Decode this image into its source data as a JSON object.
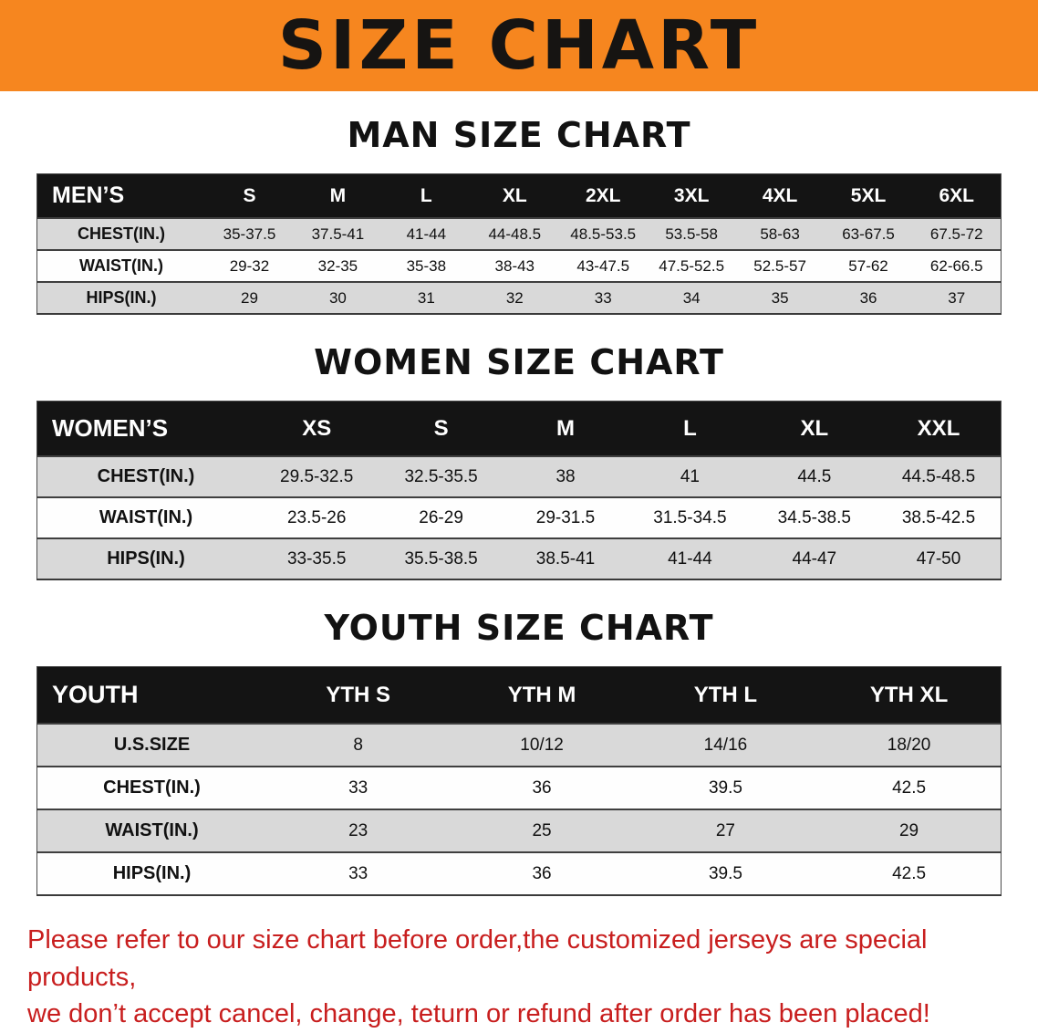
{
  "banner": {
    "title": "SIZE CHART",
    "bg_color": "#F6861F",
    "text_color": "#161412"
  },
  "sections": [
    {
      "id": "men",
      "heading": "MAN SIZE CHART",
      "table": {
        "header": [
          "MEN’S",
          "S",
          "M",
          "L",
          "XL",
          "2XL",
          "3XL",
          "4XL",
          "5XL",
          "6XL"
        ],
        "rows": [
          [
            "CHEST(IN.)",
            "35-37.5",
            "37.5-41",
            "41-44",
            "44-48.5",
            "48.5-53.5",
            "53.5-58",
            "58-63",
            "63-67.5",
            "67.5-72"
          ],
          [
            "WAIST(IN.)",
            "29-32",
            "32-35",
            "35-38",
            "38-43",
            "43-47.5",
            "47.5-52.5",
            "52.5-57",
            "57-62",
            "62-66.5"
          ],
          [
            "HIPS(IN.)",
            "29",
            "30",
            "31",
            "32",
            "33",
            "34",
            "35",
            "36",
            "37"
          ]
        ]
      }
    },
    {
      "id": "women",
      "heading": "WOMEN SIZE CHART",
      "table": {
        "header": [
          "WOMEN’S",
          "XS",
          "S",
          "M",
          "L",
          "XL",
          "XXL"
        ],
        "rows": [
          [
            "CHEST(IN.)",
            "29.5-32.5",
            "32.5-35.5",
            "38",
            "41",
            "44.5",
            "44.5-48.5"
          ],
          [
            "WAIST(IN.)",
            "23.5-26",
            "26-29",
            "29-31.5",
            "31.5-34.5",
            "34.5-38.5",
            "38.5-42.5"
          ],
          [
            "HIPS(IN.)",
            "33-35.5",
            "35.5-38.5",
            "38.5-41",
            "41-44",
            "44-47",
            "47-50"
          ]
        ]
      }
    },
    {
      "id": "youth",
      "heading": "YOUTH SIZE CHART",
      "table": {
        "header": [
          "YOUTH",
          "YTH S",
          "YTH M",
          "YTH L",
          "YTH XL"
        ],
        "rows": [
          [
            "U.S.SIZE",
            "8",
            "10/12",
            "14/16",
            "18/20"
          ],
          [
            "CHEST(IN.)",
            "33",
            "36",
            "39.5",
            "42.5"
          ],
          [
            "WAIST(IN.)",
            "23",
            "25",
            "27",
            "29"
          ],
          [
            "HIPS(IN.)",
            "33",
            "36",
            "39.5",
            "42.5"
          ]
        ]
      }
    }
  ],
  "disclaimer": {
    "color": "#C81E1E",
    "line1": "Please refer to our size chart before order,the customized jerseys are special products,",
    "line2": "we don’t accept cancel, change, teturn or refund after order has been placed!"
  }
}
